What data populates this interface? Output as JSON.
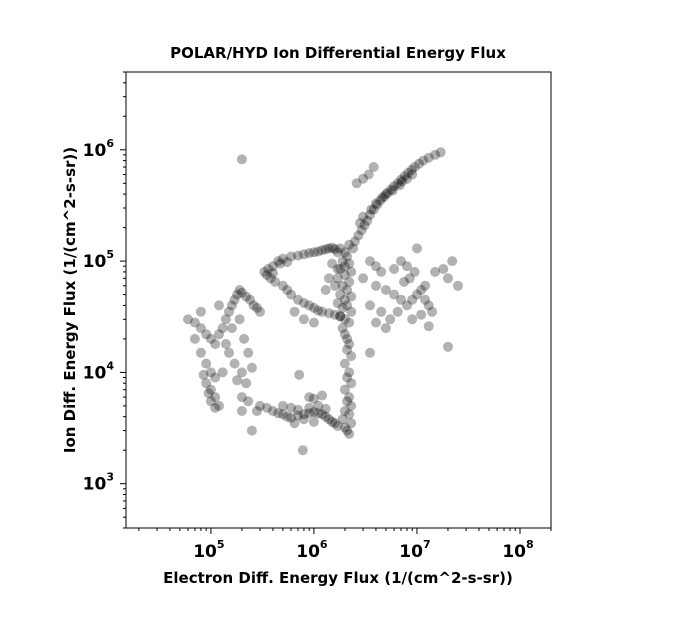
{
  "chart_data": {
    "type": "scatter",
    "title": "POLAR/HYD  Ion Differential Energy Flux",
    "xlabel": "Electron Diff. Energy Flux (1/(cm^2-s-sr))",
    "ylabel": "Ion Diff. Energy Flux (1/(cm^2-s-sr))",
    "xscale": "log",
    "yscale": "log",
    "xlim": [
      15000,
      200000000
    ],
    "ylim": [
      400,
      5000000
    ],
    "x_ticks": [
      {
        "base": "10",
        "exp": "5",
        "value": 100000
      },
      {
        "base": "10",
        "exp": "6",
        "value": 1000000
      },
      {
        "base": "10",
        "exp": "7",
        "value": 10000000
      },
      {
        "base": "10",
        "exp": "8",
        "value": 100000000
      }
    ],
    "y_ticks": [
      {
        "base": "10",
        "exp": "3",
        "value": 1000
      },
      {
        "base": "10",
        "exp": "4",
        "value": 10000
      },
      {
        "base": "10",
        "exp": "5",
        "value": 100000
      },
      {
        "base": "10",
        "exp": "6",
        "value": 1000000
      }
    ],
    "marker_color": "#000000",
    "marker_alpha": 0.3,
    "grid": false,
    "points": [
      [
        200000,
        820000
      ],
      [
        780000,
        2000
      ],
      [
        2100000,
        3000
      ],
      [
        2200000,
        2800
      ],
      [
        2000000,
        3200
      ],
      [
        2300000,
        3500
      ],
      [
        1900000,
        3800
      ],
      [
        2200000,
        4200
      ],
      [
        2000000,
        4500
      ],
      [
        2300000,
        5000
      ],
      [
        2100000,
        5500
      ],
      [
        2200000,
        6000
      ],
      [
        2000000,
        7000
      ],
      [
        2300000,
        8000
      ],
      [
        2100000,
        9000
      ],
      [
        2200000,
        10000
      ],
      [
        2000000,
        12000
      ],
      [
        2300000,
        14000
      ],
      [
        2100000,
        16000
      ],
      [
        2200000,
        18000
      ],
      [
        2100000,
        20000
      ],
      [
        2000000,
        22000
      ],
      [
        1900000,
        25000
      ],
      [
        2200000,
        28000
      ],
      [
        2000000,
        30000
      ],
      [
        1800000,
        32000
      ],
      [
        2300000,
        35000
      ],
      [
        1900000,
        38000
      ],
      [
        2100000,
        40000
      ],
      [
        1700000,
        42000
      ],
      [
        2000000,
        45000
      ],
      [
        2300000,
        48000
      ],
      [
        1800000,
        50000
      ],
      [
        2100000,
        55000
      ],
      [
        1900000,
        60000
      ],
      [
        2200000,
        65000
      ],
      [
        1700000,
        70000
      ],
      [
        2000000,
        75000
      ],
      [
        2300000,
        80000
      ],
      [
        1800000,
        85000
      ],
      [
        2000000,
        90000
      ],
      [
        2200000,
        95000
      ],
      [
        1900000,
        100000
      ],
      [
        2100000,
        110000
      ],
      [
        2000000,
        120000
      ],
      [
        1800000,
        130000
      ],
      [
        2200000,
        140000
      ],
      [
        2400000,
        130000
      ],
      [
        2500000,
        150000
      ],
      [
        2700000,
        170000
      ],
      [
        2900000,
        190000
      ],
      [
        3100000,
        210000
      ],
      [
        3300000,
        230000
      ],
      [
        3500000,
        260000
      ],
      [
        3800000,
        290000
      ],
      [
        4100000,
        320000
      ],
      [
        4400000,
        350000
      ],
      [
        4800000,
        380000
      ],
      [
        5200000,
        410000
      ],
      [
        5600000,
        440000
      ],
      [
        6000000,
        470000
      ],
      [
        6500000,
        500000
      ],
      [
        7000000,
        540000
      ],
      [
        7600000,
        580000
      ],
      [
        8200000,
        620000
      ],
      [
        8900000,
        660000
      ],
      [
        9500000,
        700000
      ],
      [
        10500000,
        750000
      ],
      [
        11500000,
        800000
      ],
      [
        13000000,
        850000
      ],
      [
        15000000,
        900000
      ],
      [
        17000000,
        950000
      ],
      [
        9000000,
        600000
      ],
      [
        8000000,
        550000
      ],
      [
        7200000,
        520000
      ],
      [
        6800000,
        480000
      ],
      [
        5800000,
        430000
      ],
      [
        5000000,
        400000
      ],
      [
        4600000,
        370000
      ],
      [
        4000000,
        330000
      ],
      [
        3000000,
        250000
      ],
      [
        3600000,
        290000
      ],
      [
        2800000,
        220000
      ],
      [
        3400000,
        600000
      ],
      [
        3800000,
        700000
      ],
      [
        2600000,
        500000
      ],
      [
        3000000,
        550000
      ],
      [
        350000,
        75000
      ],
      [
        400000,
        90000
      ],
      [
        450000,
        100000
      ],
      [
        500000,
        105000
      ],
      [
        600000,
        110000
      ],
      [
        700000,
        112000
      ],
      [
        800000,
        115000
      ],
      [
        900000,
        118000
      ],
      [
        1000000,
        120000
      ],
      [
        1100000,
        122000
      ],
      [
        1200000,
        125000
      ],
      [
        1300000,
        128000
      ],
      [
        1400000,
        130000
      ],
      [
        1500000,
        132000
      ],
      [
        1600000,
        128000
      ],
      [
        1700000,
        120000
      ],
      [
        380000,
        70000
      ],
      [
        420000,
        65000
      ],
      [
        500000,
        60000
      ],
      [
        550000,
        55000
      ],
      [
        600000,
        50000
      ],
      [
        700000,
        45000
      ],
      [
        800000,
        42000
      ],
      [
        900000,
        40000
      ],
      [
        1000000,
        38000
      ],
      [
        1100000,
        36000
      ],
      [
        1200000,
        35000
      ],
      [
        1400000,
        34000
      ],
      [
        1600000,
        33000
      ],
      [
        1800000,
        32000
      ],
      [
        360000,
        85000
      ],
      [
        330000,
        80000
      ],
      [
        400000,
        78000
      ],
      [
        470000,
        95000
      ],
      [
        550000,
        98000
      ],
      [
        1500000,
        95000
      ],
      [
        1700000,
        85000
      ],
      [
        1400000,
        70000
      ],
      [
        1600000,
        60000
      ],
      [
        1300000,
        55000
      ],
      [
        800000,
        30000
      ],
      [
        650000,
        35000
      ],
      [
        1000000,
        28000
      ],
      [
        300000,
        5000
      ],
      [
        350000,
        4800
      ],
      [
        400000,
        4500
      ],
      [
        450000,
        4300
      ],
      [
        500000,
        4200
      ],
      [
        550000,
        4000
      ],
      [
        600000,
        3900
      ],
      [
        700000,
        4100
      ],
      [
        800000,
        4200
      ],
      [
        900000,
        4300
      ],
      [
        1000000,
        4400
      ],
      [
        1100000,
        4300
      ],
      [
        1200000,
        4200
      ],
      [
        1300000,
        4000
      ],
      [
        1400000,
        3800
      ],
      [
        1500000,
        3600
      ],
      [
        1600000,
        3500
      ],
      [
        1700000,
        3300
      ],
      [
        500000,
        5000
      ],
      [
        600000,
        4800
      ],
      [
        700000,
        4600
      ],
      [
        900000,
        4800
      ],
      [
        1100000,
        5000
      ],
      [
        1300000,
        4700
      ],
      [
        800000,
        3800
      ],
      [
        1000000,
        3600
      ],
      [
        250000,
        3000
      ],
      [
        280000,
        4500
      ],
      [
        650000,
        3500
      ],
      [
        1200000,
        6200
      ],
      [
        900000,
        6000
      ],
      [
        1000000,
        5800
      ],
      [
        720000,
        9500
      ],
      [
        230000,
        5500
      ],
      [
        200000,
        6000
      ],
      [
        60000,
        30000
      ],
      [
        70000,
        28000
      ],
      [
        80000,
        25000
      ],
      [
        90000,
        22000
      ],
      [
        100000,
        20000
      ],
      [
        110000,
        18000
      ],
      [
        120000,
        22000
      ],
      [
        130000,
        25000
      ],
      [
        140000,
        30000
      ],
      [
        150000,
        35000
      ],
      [
        160000,
        40000
      ],
      [
        170000,
        45000
      ],
      [
        180000,
        50000
      ],
      [
        190000,
        55000
      ],
      [
        200000,
        52000
      ],
      [
        220000,
        48000
      ],
      [
        240000,
        45000
      ],
      [
        260000,
        40000
      ],
      [
        280000,
        38000
      ],
      [
        300000,
        35000
      ],
      [
        80000,
        15000
      ],
      [
        90000,
        12000
      ],
      [
        100000,
        10000
      ],
      [
        110000,
        9000
      ],
      [
        90000,
        8000
      ],
      [
        100000,
        7000
      ],
      [
        110000,
        6000
      ],
      [
        100000,
        5500
      ],
      [
        120000,
        5000
      ],
      [
        110000,
        4800
      ],
      [
        150000,
        15000
      ],
      [
        170000,
        12000
      ],
      [
        200000,
        10000
      ],
      [
        180000,
        8500
      ],
      [
        220000,
        8000
      ],
      [
        130000,
        10000
      ],
      [
        160000,
        25000
      ],
      [
        190000,
        30000
      ],
      [
        210000,
        20000
      ],
      [
        230000,
        15000
      ],
      [
        250000,
        11000
      ],
      [
        70000,
        20000
      ],
      [
        80000,
        35000
      ],
      [
        120000,
        40000
      ],
      [
        140000,
        18000
      ],
      [
        200000,
        4500
      ],
      [
        85000,
        9500
      ],
      [
        95000,
        6500
      ],
      [
        4000000,
        60000
      ],
      [
        5000000,
        55000
      ],
      [
        6000000,
        50000
      ],
      [
        7000000,
        45000
      ],
      [
        8000000,
        40000
      ],
      [
        9000000,
        45000
      ],
      [
        10000000,
        50000
      ],
      [
        11000000,
        55000
      ],
      [
        12000000,
        45000
      ],
      [
        13000000,
        40000
      ],
      [
        14000000,
        35000
      ],
      [
        3500000,
        40000
      ],
      [
        4500000,
        35000
      ],
      [
        5500000,
        30000
      ],
      [
        6500000,
        35000
      ],
      [
        7500000,
        65000
      ],
      [
        8500000,
        70000
      ],
      [
        9500000,
        80000
      ],
      [
        12000000,
        60000
      ],
      [
        15000000,
        80000
      ],
      [
        18000000,
        85000
      ],
      [
        20000000,
        70000
      ],
      [
        22000000,
        100000
      ],
      [
        25000000,
        60000
      ],
      [
        10000000,
        130000
      ],
      [
        7000000,
        100000
      ],
      [
        8000000,
        90000
      ],
      [
        6000000,
        85000
      ],
      [
        3000000,
        70000
      ],
      [
        3500000,
        100000
      ],
      [
        4000000,
        90000
      ],
      [
        4500000,
        80000
      ],
      [
        20000000,
        17000
      ],
      [
        13000000,
        26000
      ],
      [
        5000000,
        25000
      ],
      [
        3500000,
        15000
      ],
      [
        4000000,
        28000
      ],
      [
        9000000,
        30000
      ],
      [
        11000000,
        33000
      ]
    ]
  }
}
